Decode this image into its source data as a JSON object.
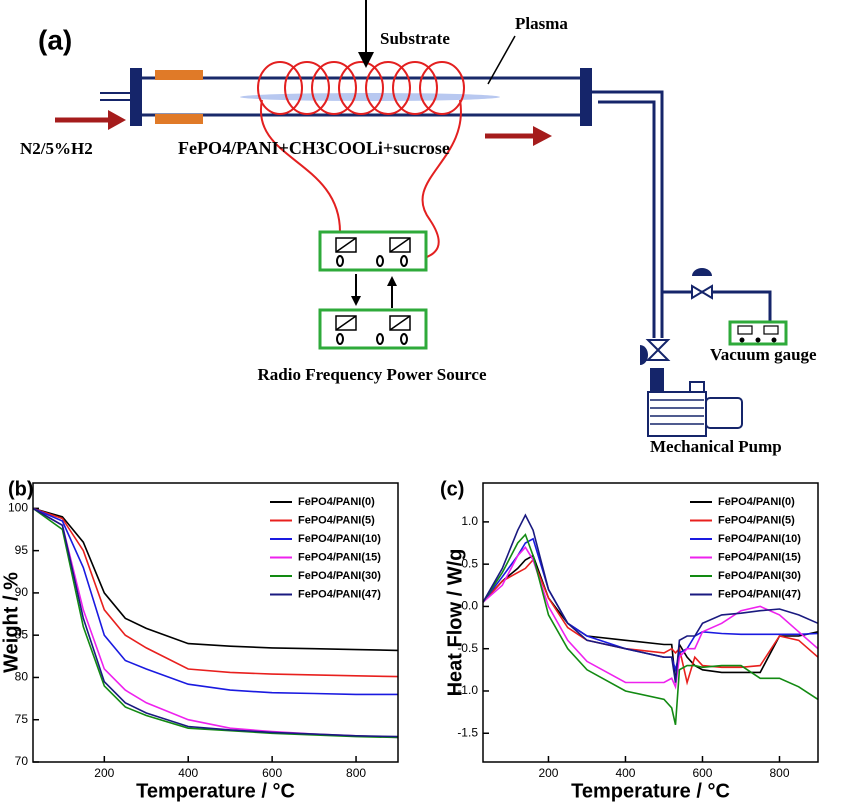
{
  "diagram": {
    "panel_label": "(a)",
    "substrate": "Substrate",
    "plasma": "Plasma",
    "gas": "N2/5%H2",
    "precursor": "FePO4/PANI+CH3COOLi+sucrose",
    "rf_source": "Radio Frequency Power Source",
    "vacuum_gauge": "Vacuum gauge",
    "pump": "Mechanical Pump"
  },
  "chart_data": [
    {
      "type": "line",
      "panel_label": "(b)",
      "x_label": "Temperature / °C",
      "y_label": "Weight / %",
      "x": [
        30,
        100,
        150,
        200,
        250,
        300,
        400,
        500,
        600,
        700,
        800,
        900
      ],
      "xlim": [
        30,
        900
      ],
      "xticks": [
        200,
        400,
        600,
        800
      ],
      "ylim": [
        70,
        103
      ],
      "yticks": [
        70,
        75,
        80,
        85,
        90,
        95,
        100
      ],
      "series": [
        {
          "name": "FePO4/PANI(0)",
          "color": "#000000",
          "values": [
            100,
            99,
            96,
            90,
            87,
            85.8,
            84,
            83.7,
            83.5,
            83.4,
            83.3,
            83.2
          ]
        },
        {
          "name": "FePO4/PANI(5)",
          "color": "#e8201e",
          "values": [
            100,
            98.8,
            95,
            88,
            85,
            83.5,
            81,
            80.6,
            80.4,
            80.3,
            80.2,
            80.1
          ]
        },
        {
          "name": "FePO4/PANI(10)",
          "color": "#1a1ae0",
          "values": [
            100,
            98.5,
            93,
            85,
            82,
            81,
            79.2,
            78.5,
            78.2,
            78.1,
            78,
            78
          ]
        },
        {
          "name": "FePO4/PANI(15)",
          "color": "#ee22ee",
          "values": [
            100,
            98,
            88,
            81,
            78.5,
            77,
            75,
            74,
            73.6,
            73.3,
            73.1,
            72.9
          ]
        },
        {
          "name": "FePO4/PANI(30)",
          "color": "#128a12",
          "values": [
            100,
            97.5,
            86,
            79,
            76.5,
            75.5,
            74,
            73.7,
            73.4,
            73.2,
            73,
            72.9
          ]
        },
        {
          "name": "FePO4/PANI(47)",
          "color": "#1a1a80",
          "values": [
            100,
            98,
            87,
            79.5,
            77,
            75.8,
            74.2,
            73.8,
            73.5,
            73.3,
            73.1,
            73
          ]
        }
      ]
    },
    {
      "type": "line",
      "panel_label": "(c)",
      "x_label": "Temperature / °C",
      "y_label": "Heat Flow / W/g",
      "x": [
        30,
        80,
        120,
        140,
        160,
        200,
        250,
        300,
        400,
        500,
        520,
        530,
        540,
        560,
        580,
        600,
        650,
        700,
        750,
        800,
        850,
        900
      ],
      "xlim": [
        30,
        900
      ],
      "xticks": [
        200,
        400,
        600,
        800
      ],
      "ylim": [
        -1.84,
        1.46
      ],
      "yticks": [
        -1.5,
        {
          "value": -1,
          "label": "-1.0"
        },
        -0.5,
        {
          "value": 0,
          "label": "0.0"
        },
        0.5,
        {
          "value": 1,
          "label": "1.0"
        }
      ],
      "series": [
        {
          "name": "FePO4/PANI(0)",
          "color": "#000000",
          "values": [
            0.05,
            0.3,
            0.45,
            0.55,
            0.6,
            0.1,
            -0.2,
            -0.35,
            -0.4,
            -0.45,
            -0.45,
            -0.9,
            -0.45,
            -0.6,
            -0.7,
            -0.75,
            -0.78,
            -0.78,
            -0.78,
            -0.35,
            -0.35,
            -0.3
          ]
        },
        {
          "name": "FePO4/PANI(5)",
          "color": "#e8201e",
          "values": [
            0.05,
            0.3,
            0.4,
            0.45,
            0.55,
            0.1,
            -0.25,
            -0.4,
            -0.5,
            -0.55,
            -0.5,
            -0.55,
            -0.5,
            -0.9,
            -0.6,
            -0.7,
            -0.72,
            -0.72,
            -0.7,
            -0.35,
            -0.4,
            -0.6
          ]
        },
        {
          "name": "FePO4/PANI(10)",
          "color": "#1a1ae0",
          "values": [
            0.05,
            0.35,
            0.6,
            0.75,
            0.8,
            0.2,
            -0.2,
            -0.35,
            -0.5,
            -0.6,
            -0.6,
            -0.75,
            -0.55,
            -0.5,
            -0.35,
            -0.3,
            -0.32,
            -0.33,
            -0.33,
            -0.33,
            -0.33,
            -0.32
          ]
        },
        {
          "name": "FePO4/PANI(15)",
          "color": "#ee22ee",
          "values": [
            0.05,
            0.25,
            0.6,
            0.7,
            0.55,
            0,
            -0.4,
            -0.65,
            -0.9,
            -0.9,
            -0.85,
            -0.95,
            -0.6,
            -0.5,
            -0.5,
            -0.3,
            -0.2,
            -0.05,
            0,
            -0.1,
            -0.3,
            -0.5
          ]
        },
        {
          "name": "FePO4/PANI(30)",
          "color": "#128a12",
          "values": [
            0.05,
            0.4,
            0.75,
            0.85,
            0.6,
            -0.1,
            -0.5,
            -0.75,
            -1,
            -1.1,
            -1.2,
            -1.4,
            -0.75,
            -0.7,
            -0.7,
            -0.72,
            -0.7,
            -0.7,
            -0.85,
            -0.85,
            -0.95,
            -1.1
          ]
        },
        {
          "name": "FePO4/PANI(47)",
          "color": "#1a1a80",
          "values": [
            0.05,
            0.45,
            0.9,
            1.08,
            0.9,
            0.2,
            -0.2,
            -0.4,
            -0.5,
            -0.6,
            -0.6,
            -0.9,
            -0.4,
            -0.35,
            -0.35,
            -0.2,
            -0.1,
            -0.08,
            -0.05,
            -0.03,
            -0.1,
            -0.2
          ]
        }
      ]
    }
  ]
}
